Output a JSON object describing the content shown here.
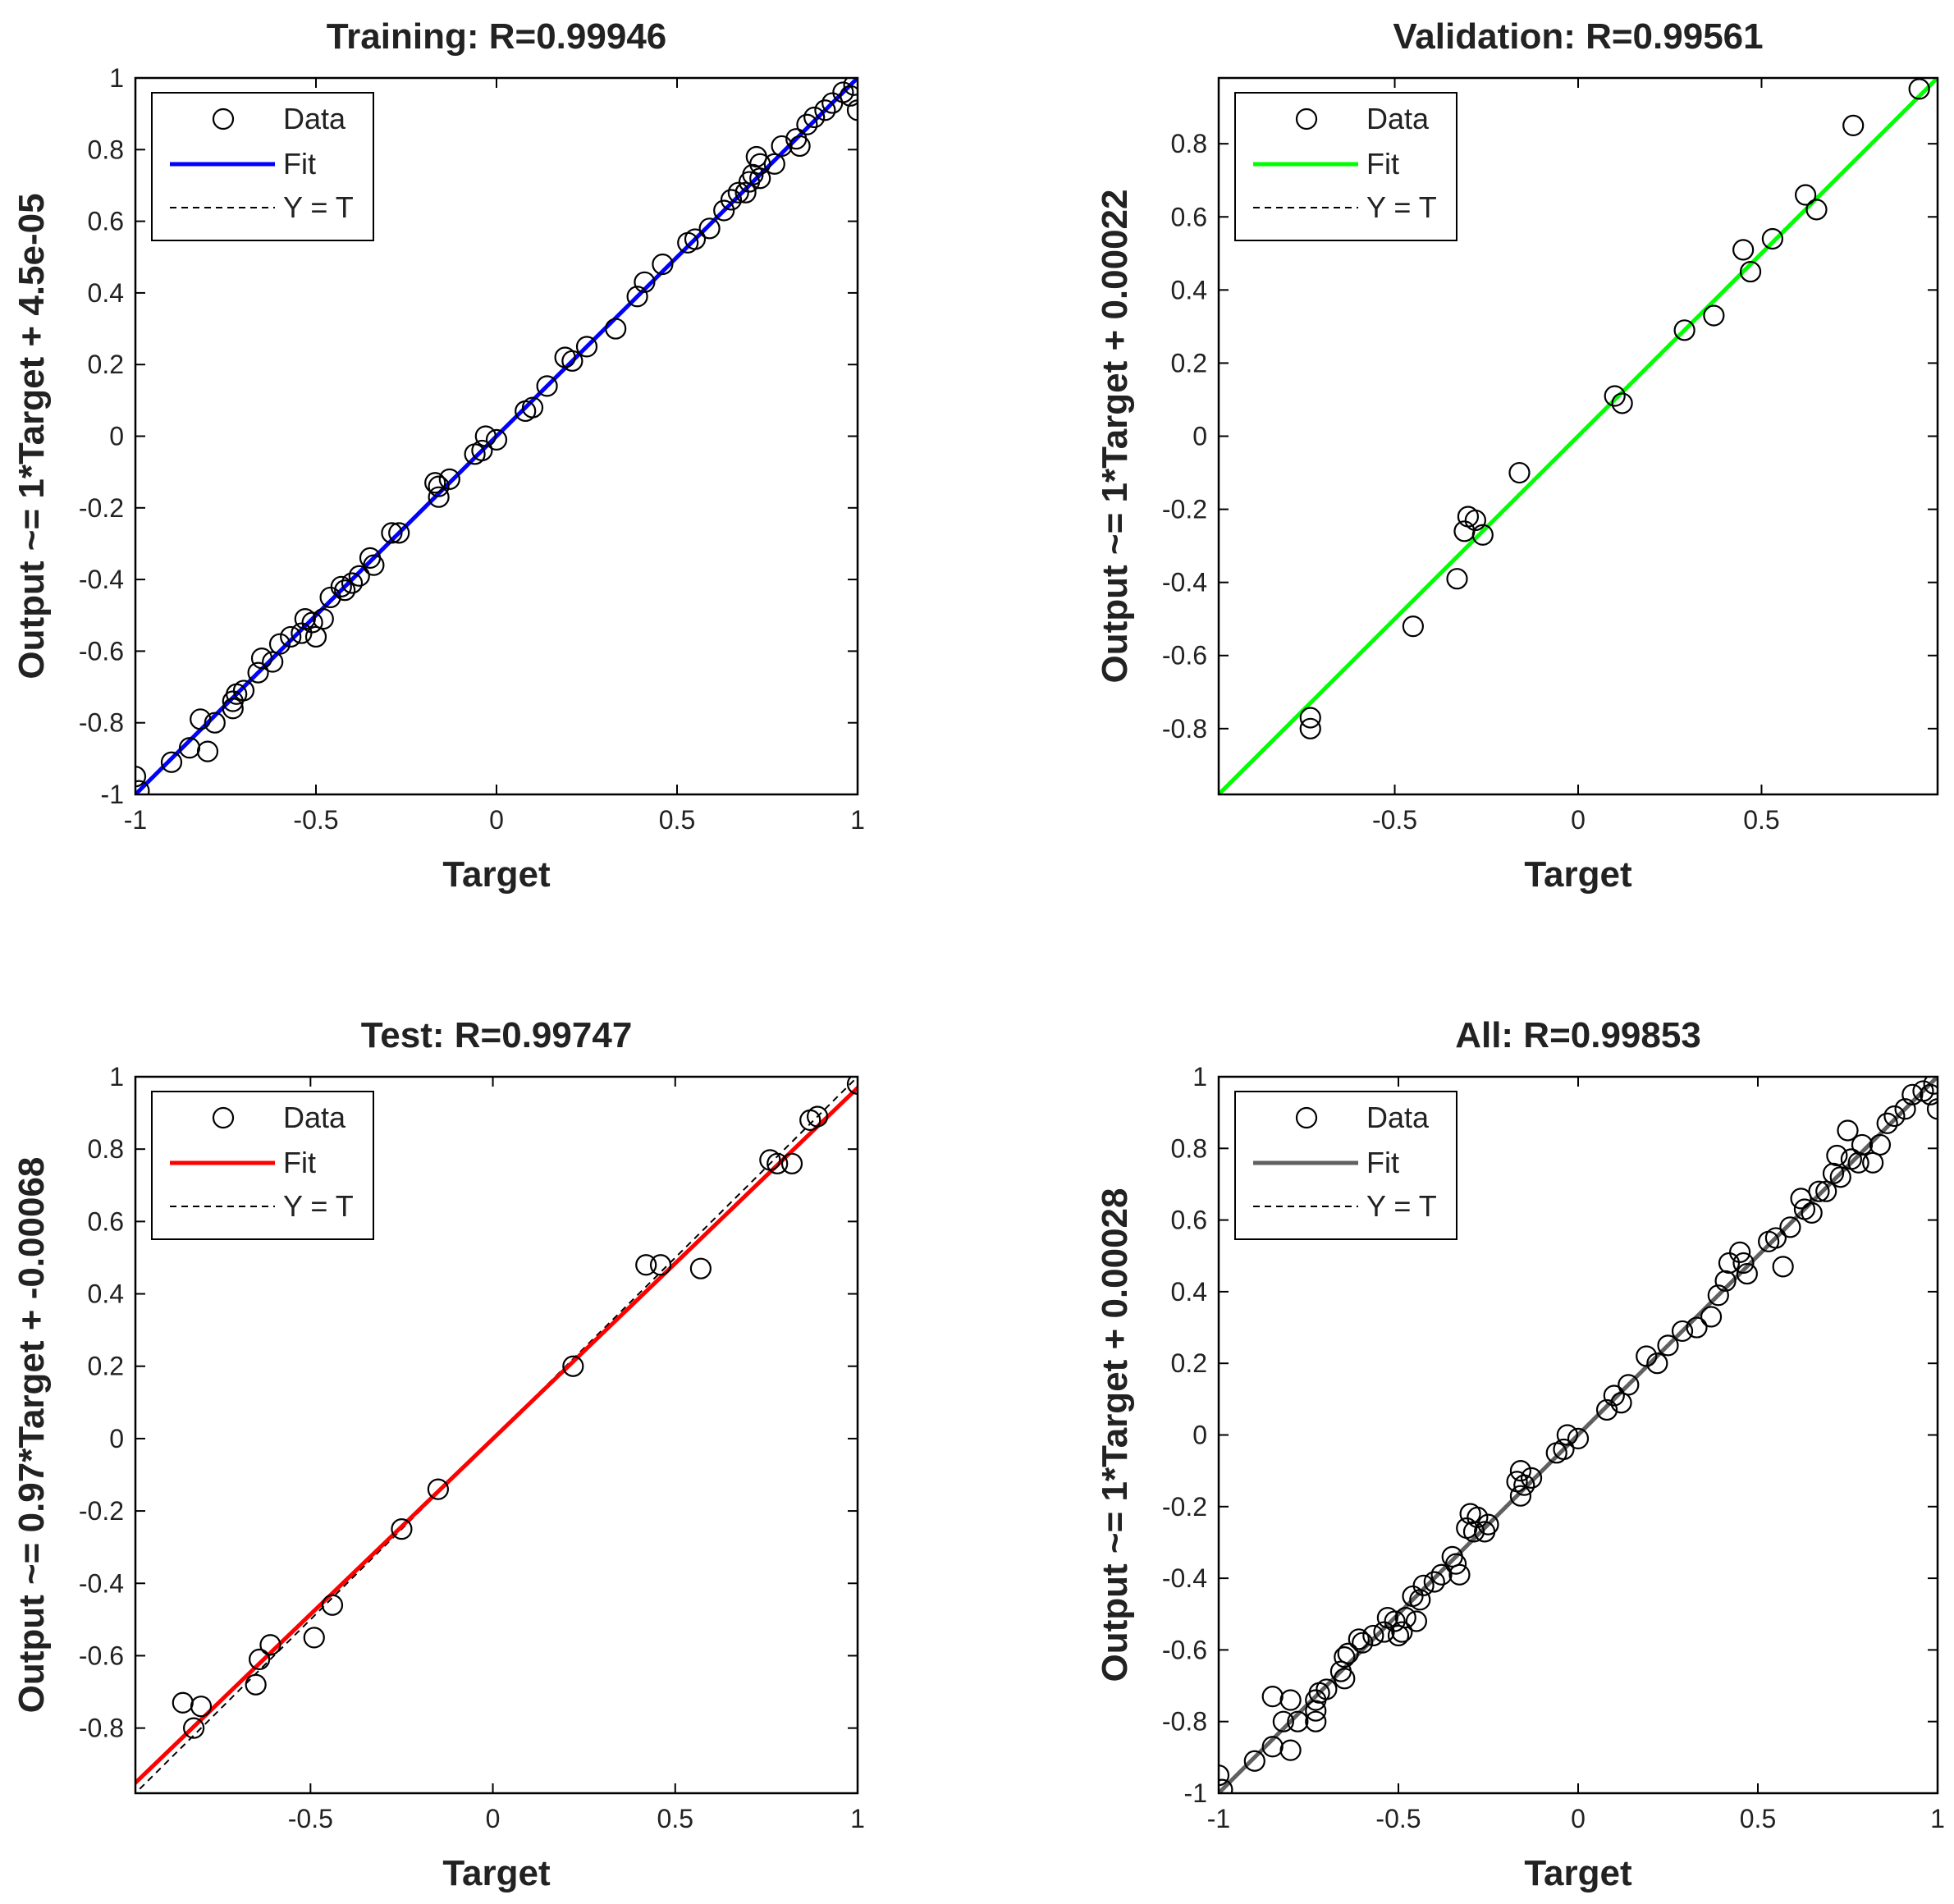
{
  "chart_data": [
    {
      "type": "scatter",
      "title": "Training: R=0.99946",
      "xlabel": "Target",
      "ylabel": "Output ~= 1*Target + 4.5e-05",
      "xlim": [
        -1,
        1
      ],
      "ylim": [
        -1,
        1
      ],
      "xticks": [
        -1,
        -0.5,
        0,
        0.5,
        1
      ],
      "xtick_labels": [
        "-1",
        "-0.5",
        "0",
        "0.5",
        "1"
      ],
      "yticks": [
        -1,
        -0.8,
        -0.6,
        -0.4,
        -0.2,
        0,
        0.2,
        0.4,
        0.6,
        0.8,
        1
      ],
      "ytick_labels": [
        "-1",
        "-0.8",
        "-0.6",
        "-0.4",
        "-0.2",
        "0",
        "0.2",
        "0.4",
        "0.6",
        "0.8",
        "1"
      ],
      "fit": {
        "slope": 1,
        "intercept": 4.5e-05,
        "color": "#0000ff"
      },
      "legend": {
        "position": "top-left",
        "entries": [
          "Data",
          "Fit",
          "Y = T"
        ]
      },
      "points": [
        [
          -1,
          -0.95
        ],
        [
          -0.99,
          -0.99
        ],
        [
          -0.9,
          -0.91
        ],
        [
          -0.85,
          -0.87
        ],
        [
          -0.8,
          -0.88
        ],
        [
          -0.82,
          -0.79
        ],
        [
          -0.78,
          -0.8
        ],
        [
          -0.73,
          -0.74
        ],
        [
          -0.73,
          -0.76
        ],
        [
          -0.72,
          -0.72
        ],
        [
          -0.7,
          -0.71
        ],
        [
          -0.66,
          -0.66
        ],
        [
          -0.65,
          -0.62
        ],
        [
          -0.62,
          -0.63
        ],
        [
          -0.6,
          -0.58
        ],
        [
          -0.57,
          -0.56
        ],
        [
          -0.54,
          -0.55
        ],
        [
          -0.53,
          -0.51
        ],
        [
          -0.51,
          -0.52
        ],
        [
          -0.5,
          -0.56
        ],
        [
          -0.48,
          -0.51
        ],
        [
          -0.46,
          -0.45
        ],
        [
          -0.43,
          -0.42
        ],
        [
          -0.42,
          -0.43
        ],
        [
          -0.4,
          -0.41
        ],
        [
          -0.38,
          -0.39
        ],
        [
          -0.35,
          -0.34
        ],
        [
          -0.34,
          -0.36
        ],
        [
          -0.29,
          -0.27
        ],
        [
          -0.27,
          -0.27
        ],
        [
          -0.17,
          -0.13
        ],
        [
          -0.16,
          -0.14
        ],
        [
          -0.16,
          -0.17
        ],
        [
          -0.13,
          -0.12
        ],
        [
          -0.06,
          -0.05
        ],
        [
          -0.04,
          -0.04
        ],
        [
          -0.03,
          0
        ],
        [
          0,
          -0.01
        ],
        [
          0.08,
          0.07
        ],
        [
          0.1,
          0.08
        ],
        [
          0.14,
          0.14
        ],
        [
          0.19,
          0.22
        ],
        [
          0.21,
          0.21
        ],
        [
          0.25,
          0.25
        ],
        [
          0.33,
          0.3
        ],
        [
          0.39,
          0.39
        ],
        [
          0.41,
          0.43
        ],
        [
          0.46,
          0.48
        ],
        [
          0.53,
          0.54
        ],
        [
          0.55,
          0.55
        ],
        [
          0.59,
          0.58
        ],
        [
          0.63,
          0.63
        ],
        [
          0.65,
          0.66
        ],
        [
          0.67,
          0.68
        ],
        [
          0.69,
          0.68
        ],
        [
          0.7,
          0.71
        ],
        [
          0.71,
          0.73
        ],
        [
          0.72,
          0.78
        ],
        [
          0.73,
          0.76
        ],
        [
          0.73,
          0.72
        ],
        [
          0.77,
          0.76
        ],
        [
          0.79,
          0.81
        ],
        [
          0.83,
          0.83
        ],
        [
          0.84,
          0.81
        ],
        [
          0.86,
          0.87
        ],
        [
          0.88,
          0.89
        ],
        [
          0.91,
          0.91
        ],
        [
          0.93,
          0.93
        ],
        [
          0.96,
          0.96
        ],
        [
          0.98,
          0.95
        ],
        [
          0.99,
          0.98
        ],
        [
          1,
          0.91
        ]
      ]
    },
    {
      "type": "scatter",
      "title": "Validation: R=0.99561",
      "xlabel": "Target",
      "ylabel": "Output ~= 1*Target + 0.00022",
      "xlim": [
        -0.98,
        0.98
      ],
      "ylim": [
        -0.98,
        0.98
      ],
      "xticks": [
        -0.5,
        0,
        0.5
      ],
      "xtick_labels": [
        "-0.5",
        "0",
        "0.5"
      ],
      "yticks": [
        -0.8,
        -0.6,
        -0.4,
        -0.2,
        0,
        0.2,
        0.4,
        0.6,
        0.8
      ],
      "ytick_labels": [
        "-0.8",
        "-0.6",
        "-0.4",
        "-0.2",
        "0",
        "0.2",
        "0.4",
        "0.6",
        "0.8"
      ],
      "fit": {
        "slope": 1,
        "intercept": 0.00022,
        "color": "#00ff00"
      },
      "legend": {
        "position": "top-left",
        "entries": [
          "Data",
          "Fit",
          "Y = T"
        ]
      },
      "points": [
        [
          -0.73,
          -0.8
        ],
        [
          -0.73,
          -0.77
        ],
        [
          -0.45,
          -0.52
        ],
        [
          -0.33,
          -0.39
        ],
        [
          -0.31,
          -0.26
        ],
        [
          -0.3,
          -0.22
        ],
        [
          -0.28,
          -0.23
        ],
        [
          -0.26,
          -0.27
        ],
        [
          -0.16,
          -0.1
        ],
        [
          0.1,
          0.11
        ],
        [
          0.12,
          0.09
        ],
        [
          0.29,
          0.29
        ],
        [
          0.37,
          0.33
        ],
        [
          0.45,
          0.51
        ],
        [
          0.47,
          0.45
        ],
        [
          0.53,
          0.54
        ],
        [
          0.62,
          0.66
        ],
        [
          0.65,
          0.62
        ],
        [
          0.75,
          0.85
        ],
        [
          0.93,
          0.95
        ]
      ]
    },
    {
      "type": "scatter",
      "title": "Test: R=0.99747",
      "xlabel": "Target",
      "ylabel": "Output ~= 0.97*Target + -0.00068",
      "xlim": [
        -0.98,
        1
      ],
      "ylim": [
        -0.98,
        1
      ],
      "xticks": [
        -0.5,
        0,
        0.5,
        1
      ],
      "xtick_labels": [
        "-0.5",
        "0",
        "0.5",
        "1"
      ],
      "yticks": [
        -0.8,
        -0.6,
        -0.4,
        -0.2,
        0,
        0.2,
        0.4,
        0.6,
        0.8,
        1
      ],
      "ytick_labels": [
        "-0.8",
        "-0.6",
        "-0.4",
        "-0.2",
        "0",
        "0.2",
        "0.4",
        "0.6",
        "0.8",
        "1"
      ],
      "fit": {
        "slope": 0.97,
        "intercept": -0.00068,
        "color": "#ff0000"
      },
      "legend": {
        "position": "top-left",
        "entries": [
          "Data",
          "Fit",
          "Y = T"
        ]
      },
      "points": [
        [
          -0.85,
          -0.73
        ],
        [
          -0.82,
          -0.8
        ],
        [
          -0.8,
          -0.74
        ],
        [
          -0.65,
          -0.68
        ],
        [
          -0.64,
          -0.61
        ],
        [
          -0.61,
          -0.57
        ],
        [
          -0.49,
          -0.55
        ],
        [
          -0.44,
          -0.46
        ],
        [
          -0.25,
          -0.25
        ],
        [
          -0.15,
          -0.14
        ],
        [
          0.22,
          0.2
        ],
        [
          0.42,
          0.48
        ],
        [
          0.46,
          0.48
        ],
        [
          0.57,
          0.47
        ],
        [
          0.76,
          0.77
        ],
        [
          0.78,
          0.76
        ],
        [
          0.82,
          0.76
        ],
        [
          0.87,
          0.88
        ],
        [
          0.89,
          0.89
        ],
        [
          1,
          0.98
        ]
      ]
    },
    {
      "type": "scatter",
      "title": "All: R=0.99853",
      "xlabel": "Target",
      "ylabel": "Output ~= 1*Target + 0.00028",
      "xlim": [
        -1,
        1
      ],
      "ylim": [
        -1,
        1
      ],
      "xticks": [
        -1,
        -0.5,
        0,
        0.5,
        1
      ],
      "xtick_labels": [
        "-1",
        "-0.5",
        "0",
        "0.5",
        "1"
      ],
      "yticks": [
        -1,
        -0.8,
        -0.6,
        -0.4,
        -0.2,
        0,
        0.2,
        0.4,
        0.6,
        0.8,
        1
      ],
      "ytick_labels": [
        "-1",
        "-0.8",
        "-0.6",
        "-0.4",
        "-0.2",
        "0",
        "0.2",
        "0.4",
        "0.6",
        "0.8",
        "1"
      ],
      "fit": {
        "slope": 1,
        "intercept": 0.00028,
        "color": "#606060"
      },
      "legend": {
        "position": "top-left",
        "entries": [
          "Data",
          "Fit",
          "Y = T"
        ]
      },
      "points": [
        [
          -1,
          -0.95
        ],
        [
          -0.99,
          -0.99
        ],
        [
          -0.9,
          -0.91
        ],
        [
          -0.85,
          -0.73
        ],
        [
          -0.85,
          -0.87
        ],
        [
          -0.82,
          -0.8
        ],
        [
          -0.8,
          -0.88
        ],
        [
          -0.8,
          -0.74
        ],
        [
          -0.78,
          -0.8
        ],
        [
          -0.73,
          -0.74
        ],
        [
          -0.73,
          -0.8
        ],
        [
          -0.73,
          -0.77
        ],
        [
          -0.72,
          -0.72
        ],
        [
          -0.7,
          -0.71
        ],
        [
          -0.66,
          -0.66
        ],
        [
          -0.65,
          -0.68
        ],
        [
          -0.65,
          -0.62
        ],
        [
          -0.64,
          -0.61
        ],
        [
          -0.61,
          -0.57
        ],
        [
          -0.6,
          -0.58
        ],
        [
          -0.57,
          -0.56
        ],
        [
          -0.54,
          -0.55
        ],
        [
          -0.53,
          -0.51
        ],
        [
          -0.51,
          -0.52
        ],
        [
          -0.5,
          -0.56
        ],
        [
          -0.49,
          -0.55
        ],
        [
          -0.48,
          -0.51
        ],
        [
          -0.46,
          -0.45
        ],
        [
          -0.45,
          -0.52
        ],
        [
          -0.44,
          -0.46
        ],
        [
          -0.43,
          -0.42
        ],
        [
          -0.4,
          -0.41
        ],
        [
          -0.38,
          -0.39
        ],
        [
          -0.35,
          -0.34
        ],
        [
          -0.34,
          -0.36
        ],
        [
          -0.33,
          -0.39
        ],
        [
          -0.31,
          -0.26
        ],
        [
          -0.3,
          -0.22
        ],
        [
          -0.29,
          -0.27
        ],
        [
          -0.28,
          -0.23
        ],
        [
          -0.26,
          -0.27
        ],
        [
          -0.25,
          -0.25
        ],
        [
          -0.17,
          -0.13
        ],
        [
          -0.16,
          -0.1
        ],
        [
          -0.16,
          -0.17
        ],
        [
          -0.15,
          -0.14
        ],
        [
          -0.13,
          -0.12
        ],
        [
          -0.06,
          -0.05
        ],
        [
          -0.04,
          -0.04
        ],
        [
          -0.03,
          0
        ],
        [
          0,
          -0.01
        ],
        [
          0.08,
          0.07
        ],
        [
          0.1,
          0.11
        ],
        [
          0.12,
          0.09
        ],
        [
          0.14,
          0.14
        ],
        [
          0.19,
          0.22
        ],
        [
          0.22,
          0.2
        ],
        [
          0.25,
          0.25
        ],
        [
          0.29,
          0.29
        ],
        [
          0.33,
          0.3
        ],
        [
          0.37,
          0.33
        ],
        [
          0.39,
          0.39
        ],
        [
          0.41,
          0.43
        ],
        [
          0.42,
          0.48
        ],
        [
          0.45,
          0.51
        ],
        [
          0.46,
          0.48
        ],
        [
          0.47,
          0.45
        ],
        [
          0.53,
          0.54
        ],
        [
          0.55,
          0.55
        ],
        [
          0.57,
          0.47
        ],
        [
          0.59,
          0.58
        ],
        [
          0.62,
          0.66
        ],
        [
          0.63,
          0.63
        ],
        [
          0.65,
          0.62
        ],
        [
          0.67,
          0.68
        ],
        [
          0.69,
          0.68
        ],
        [
          0.71,
          0.73
        ],
        [
          0.72,
          0.78
        ],
        [
          0.73,
          0.72
        ],
        [
          0.75,
          0.85
        ],
        [
          0.76,
          0.77
        ],
        [
          0.78,
          0.76
        ],
        [
          0.79,
          0.81
        ],
        [
          0.82,
          0.76
        ],
        [
          0.84,
          0.81
        ],
        [
          0.86,
          0.87
        ],
        [
          0.88,
          0.89
        ],
        [
          0.91,
          0.91
        ],
        [
          0.93,
          0.95
        ],
        [
          0.96,
          0.96
        ],
        [
          0.98,
          0.95
        ],
        [
          0.99,
          0.98
        ],
        [
          1,
          0.91
        ]
      ]
    }
  ]
}
